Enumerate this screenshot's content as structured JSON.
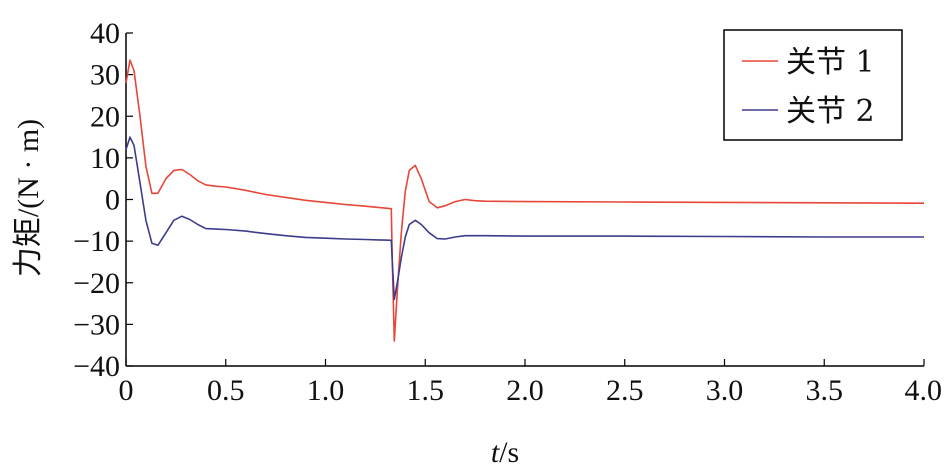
{
  "chart_data": {
    "type": "line",
    "xlabel_italic": "t",
    "xlabel_rest": "/s",
    "ylabel": "力矩/(N · m)",
    "xlim": [
      0,
      4.0
    ],
    "ylim": [
      -40,
      40
    ],
    "x_ticks": [
      "0",
      "0.5",
      "1.0",
      "1.5",
      "2.0",
      "2.5",
      "3.0",
      "3.5",
      "4.0"
    ],
    "y_ticks": [
      "40",
      "30",
      "20",
      "10",
      "0",
      "−10",
      "−20",
      "−30",
      "−40"
    ],
    "grid": false,
    "legend_position": "top-right",
    "series": [
      {
        "name": "关节 1",
        "color": "#e8463a",
        "x": [
          0.0,
          0.02,
          0.04,
          0.07,
          0.1,
          0.13,
          0.16,
          0.2,
          0.24,
          0.28,
          0.32,
          0.36,
          0.4,
          0.45,
          0.5,
          0.6,
          0.7,
          0.8,
          0.9,
          1.0,
          1.1,
          1.2,
          1.33,
          1.335,
          1.345,
          1.36,
          1.38,
          1.4,
          1.42,
          1.45,
          1.48,
          1.52,
          1.56,
          1.6,
          1.65,
          1.7,
          1.75,
          1.8,
          2.0,
          2.5,
          3.0,
          3.5,
          4.0
        ],
        "y": [
          28,
          33.5,
          31,
          20,
          8,
          1.5,
          1.5,
          5,
          7,
          7.2,
          6,
          4.5,
          3.5,
          3.2,
          3,
          2.2,
          1.2,
          0.5,
          -0.2,
          -0.7,
          -1.2,
          -1.6,
          -2.2,
          -15,
          -34,
          -22,
          -8,
          2,
          7,
          8.2,
          5,
          -0.5,
          -2,
          -1.5,
          -0.5,
          0,
          -0.3,
          -0.4,
          -0.5,
          -0.6,
          -0.7,
          -0.8,
          -0.9
        ]
      },
      {
        "name": "关节 2",
        "color": "#3d3c8a",
        "x": [
          0.0,
          0.02,
          0.04,
          0.07,
          0.1,
          0.13,
          0.16,
          0.2,
          0.24,
          0.28,
          0.32,
          0.36,
          0.4,
          0.45,
          0.5,
          0.6,
          0.7,
          0.8,
          0.9,
          1.0,
          1.1,
          1.2,
          1.33,
          1.335,
          1.345,
          1.36,
          1.38,
          1.4,
          1.42,
          1.45,
          1.48,
          1.52,
          1.56,
          1.6,
          1.65,
          1.7,
          1.75,
          1.8,
          2.0,
          2.5,
          3.0,
          3.5,
          4.0
        ],
        "y": [
          12,
          15,
          13,
          4,
          -5,
          -10.5,
          -11,
          -8,
          -5,
          -4,
          -4.8,
          -6,
          -7,
          -7.1,
          -7.2,
          -7.6,
          -8.2,
          -8.7,
          -9.1,
          -9.3,
          -9.5,
          -9.6,
          -9.8,
          -15,
          -24,
          -20,
          -14,
          -9,
          -6,
          -5,
          -6,
          -8,
          -9.4,
          -9.5,
          -9,
          -8.7,
          -8.7,
          -8.7,
          -8.8,
          -8.8,
          -8.9,
          -9.0,
          -9.0
        ]
      }
    ]
  }
}
